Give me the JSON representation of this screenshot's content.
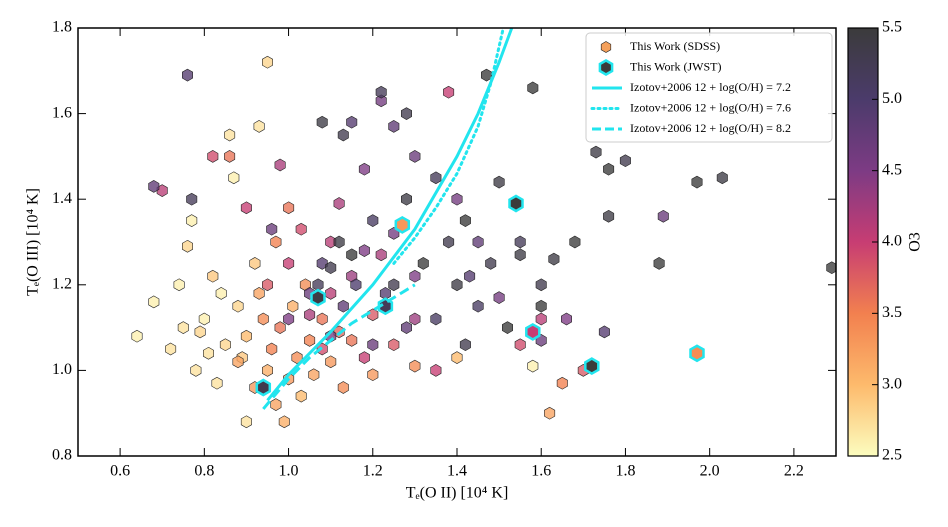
{
  "chart_data": {
    "type": "scatter",
    "xlabel": "Tₑ(O II)  [10⁴ K]",
    "ylabel": "Tₑ(O III)  [10⁴ K]",
    "xlim": [
      0.5,
      2.3
    ],
    "ylim": [
      0.8,
      1.8
    ],
    "xticks": [
      0.6,
      0.8,
      {
        "value": 1,
        "label": "1.0"
      },
      1.2,
      1.4,
      1.6,
      1.8,
      {
        "value": 2,
        "label": "2.0"
      },
      2.2
    ],
    "yticks": [
      0.8,
      {
        "value": 1,
        "label": "1.0"
      },
      1.2,
      1.4,
      1.6,
      1.8
    ],
    "grid": false,
    "legend": "upper right",
    "colorbar": {
      "label": "O3",
      "clim": [
        2.5,
        5.5
      ],
      "ticks": [
        2.5,
        {
          "value": 3,
          "label": "3.0"
        },
        3.5,
        {
          "value": 4,
          "label": "4.0"
        },
        4.5,
        {
          "value": 5,
          "label": "5.0"
        },
        5.5
      ],
      "colormap": [
        "#fcfdbf",
        "#fdba6c",
        "#f2804f",
        "#c73d73",
        "#7d3b84",
        "#4b3b6b",
        "#3b3b3b"
      ]
    },
    "series": [
      {
        "name": "This Work (SDSS)",
        "marker": "hexagon",
        "color": "#f5a05a",
        "edgecolor": "#222222",
        "x": [
          0.64,
          0.68,
          0.72,
          0.74,
          0.76,
          0.78,
          0.8,
          0.82,
          0.83,
          0.85,
          0.86,
          0.87,
          0.88,
          0.9,
          0.92,
          0.77,
          0.81,
          0.79,
          0.84,
          0.89,
          0.93,
          0.95,
          1.58,
          0.75,
          0.88,
          0.9,
          0.92,
          0.94,
          0.95,
          0.96,
          0.97,
          0.98,
          1.0,
          1.01,
          1.02,
          1.03,
          1.05,
          1.06,
          1.08,
          1.1,
          0.99,
          1.04,
          0.86,
          1.27,
          1.62,
          1.65,
          1.4,
          1.13,
          0.93,
          1.15,
          0.97,
          1.2,
          1.3,
          1.0,
          0.95,
          1.0,
          1.05,
          1.08,
          1.1,
          1.12,
          1.15,
          1.18,
          1.2,
          1.22,
          0.7,
          0.82,
          0.9,
          1.12,
          1.25,
          1.3,
          1.35,
          1.6,
          1.55,
          1.7,
          0.98,
          1.38,
          1.1,
          1.03,
          1.0,
          1.05,
          1.08,
          1.1,
          1.13,
          1.16,
          1.18,
          1.2,
          1.23,
          1.25,
          1.28,
          1.3,
          0.68,
          0.76,
          1.22,
          1.3,
          1.18,
          1.43,
          1.45,
          1.5,
          1.6,
          1.75,
          1.66,
          1.89,
          1.25,
          1.4,
          0.96,
          1.15,
          1.07,
          1.1,
          1.12,
          1.15,
          1.2,
          1.25,
          1.28,
          1.32,
          1.35,
          1.38,
          1.4,
          1.42,
          1.45,
          1.48,
          1.5,
          1.52,
          1.55,
          1.58,
          1.6,
          1.63,
          1.68,
          1.73,
          1.76,
          1.8,
          1.76,
          1.88,
          1.97,
          2.03,
          2.29,
          1.22,
          1.28,
          1.47,
          1.08,
          1.13,
          0.77,
          1.35,
          1.42,
          1.55,
          1.6
        ],
        "y": [
          1.08,
          1.16,
          1.05,
          1.2,
          1.29,
          1.0,
          1.12,
          1.22,
          0.97,
          1.06,
          1.55,
          1.45,
          1.15,
          0.88,
          1.25,
          1.35,
          1.04,
          1.09,
          1.18,
          1.03,
          1.57,
          1.72,
          1.01,
          1.1,
          1.02,
          1.08,
          0.96,
          1.12,
          1.0,
          1.05,
          0.92,
          1.1,
          0.98,
          1.15,
          1.03,
          0.94,
          1.07,
          0.99,
          1.12,
          1.02,
          0.88,
          1.2,
          1.5,
          1.34,
          0.9,
          0.97,
          1.03,
          0.96,
          1.18,
          1.07,
          1.3,
          0.99,
          1.01,
          1.38,
          1.2,
          1.25,
          1.13,
          1.05,
          1.18,
          1.09,
          1.22,
          1.03,
          1.13,
          1.27,
          1.42,
          1.5,
          1.38,
          1.39,
          1.06,
          1.12,
          1.0,
          1.12,
          1.06,
          1.0,
          1.48,
          1.65,
          1.3,
          1.33,
          1.12,
          1.18,
          1.25,
          1.08,
          1.15,
          1.2,
          1.28,
          1.06,
          1.18,
          1.32,
          1.1,
          1.22,
          1.43,
          1.69,
          1.63,
          1.5,
          1.47,
          1.22,
          1.3,
          1.17,
          1.07,
          1.09,
          1.12,
          1.36,
          1.57,
          1.4,
          1.33,
          1.58,
          1.2,
          1.24,
          1.3,
          1.27,
          1.35,
          1.2,
          1.4,
          1.25,
          1.45,
          1.3,
          1.2,
          1.35,
          1.15,
          1.25,
          1.44,
          1.1,
          1.3,
          1.66,
          1.2,
          1.26,
          1.3,
          1.51,
          1.47,
          1.49,
          1.36,
          1.25,
          1.44,
          1.45,
          1.24,
          1.65,
          1.6,
          1.69,
          1.58,
          1.55,
          1.4,
          1.12,
          1.06,
          1.27,
          1.15
        ],
        "c": [
          2.6,
          2.6,
          2.7,
          2.6,
          2.8,
          2.7,
          2.6,
          2.9,
          2.7,
          2.8,
          2.7,
          2.6,
          2.8,
          2.7,
          2.9,
          2.6,
          2.7,
          2.8,
          2.6,
          2.9,
          2.7,
          2.8,
          2.6,
          2.7,
          3.2,
          3.0,
          3.3,
          3.4,
          3.1,
          3.5,
          3.2,
          3.6,
          3.3,
          3.1,
          3.4,
          3.0,
          3.5,
          3.2,
          3.6,
          3.3,
          3.1,
          3.4,
          3.6,
          3.3,
          3.2,
          3.5,
          3.0,
          3.4,
          3.2,
          3.6,
          3.5,
          3.3,
          3.4,
          3.6,
          3.8,
          4.0,
          4.2,
          3.9,
          4.1,
          3.7,
          4.3,
          4.0,
          3.8,
          4.2,
          4.1,
          3.9,
          4.0,
          4.2,
          3.8,
          4.3,
          4.0,
          4.1,
          3.9,
          3.8,
          4.2,
          4.0,
          4.1,
          3.9,
          4.5,
          4.7,
          4.9,
          4.6,
          4.8,
          5.0,
          4.5,
          4.7,
          4.9,
          4.6,
          4.8,
          4.5,
          4.8,
          4.9,
          4.6,
          4.7,
          4.5,
          4.9,
          4.8,
          4.6,
          4.7,
          4.9,
          4.5,
          4.7,
          4.8,
          4.6,
          4.7,
          4.9,
          5.2,
          5.3,
          5.4,
          5.5,
          5.1,
          5.3,
          5.4,
          5.5,
          5.2,
          5.3,
          5.4,
          5.5,
          5.1,
          5.3,
          5.4,
          5.5,
          5.2,
          5.5,
          5.3,
          5.4,
          5.5,
          5.4,
          5.5,
          5.3,
          5.4,
          5.5,
          5.5,
          5.4,
          5.5,
          5.2,
          5.3,
          5.5,
          5.4,
          5.3,
          5.2,
          5.1,
          5.3,
          5.4,
          5.5
        ]
      },
      {
        "name": "This Work (JWST)",
        "marker": "hexagon",
        "color": "#3b3b3b",
        "edgecolor": "#22e5ee",
        "x": [
          0.94,
          1.07,
          1.23,
          1.27,
          1.54,
          1.58,
          1.72,
          1.97
        ],
        "y": [
          0.96,
          1.17,
          1.15,
          1.34,
          1.39,
          1.09,
          1.01,
          1.04
        ],
        "c": [
          5.3,
          5.4,
          5.2,
          3.3,
          5.5,
          4.0,
          5.5,
          3.4
        ]
      }
    ],
    "lines": [
      {
        "name": "Izotov+2006 12 + log(O/H) = 7.2",
        "color": "#22e5ee",
        "style": "solid",
        "x": [
          0.95,
          1.0,
          1.1,
          1.2,
          1.3,
          1.4,
          1.45,
          1.5,
          1.53
        ],
        "y": [
          0.93,
          0.99,
          1.09,
          1.2,
          1.33,
          1.5,
          1.6,
          1.72,
          1.8
        ]
      },
      {
        "name": "Izotov+2006 12 + log(O/H) = 7.6",
        "color": "#22e5ee",
        "style": "dotted",
        "x": [
          1.25,
          1.3,
          1.35,
          1.4,
          1.45,
          1.48,
          1.51
        ],
        "y": [
          1.25,
          1.31,
          1.38,
          1.46,
          1.57,
          1.67,
          1.8
        ]
      },
      {
        "name": "Izotov+2006 12 + log(O/H) = 8.2",
        "color": "#22e5ee",
        "style": "dashed",
        "x": [
          0.94,
          1.0,
          1.05,
          1.1,
          1.15,
          1.2,
          1.25,
          1.3
        ],
        "y": [
          0.91,
          0.98,
          1.03,
          1.07,
          1.11,
          1.14,
          1.17,
          1.2
        ]
      }
    ]
  }
}
